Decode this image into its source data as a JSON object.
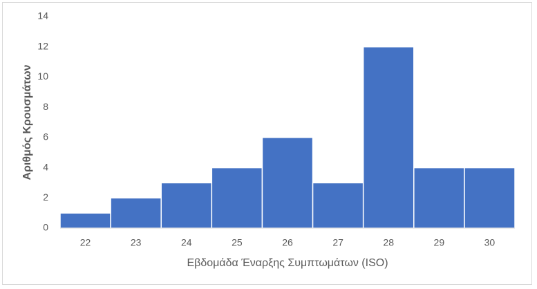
{
  "chart_data": {
    "type": "bar",
    "x_label": "Εβδομάδα Έναρξης Συμπτωμάτων (ISO)",
    "y_label": "Αριθμός Κρουσμάτων",
    "categories": [
      "22",
      "23",
      "24",
      "25",
      "26",
      "27",
      "28",
      "29",
      "30"
    ],
    "values": [
      1,
      2,
      3,
      4,
      6,
      3,
      12,
      4,
      4
    ],
    "color": "#4472c4",
    "ylim": [
      0,
      14
    ],
    "yticks": [
      0,
      2,
      4,
      6,
      8,
      10,
      12,
      14
    ],
    "grid": false
  }
}
